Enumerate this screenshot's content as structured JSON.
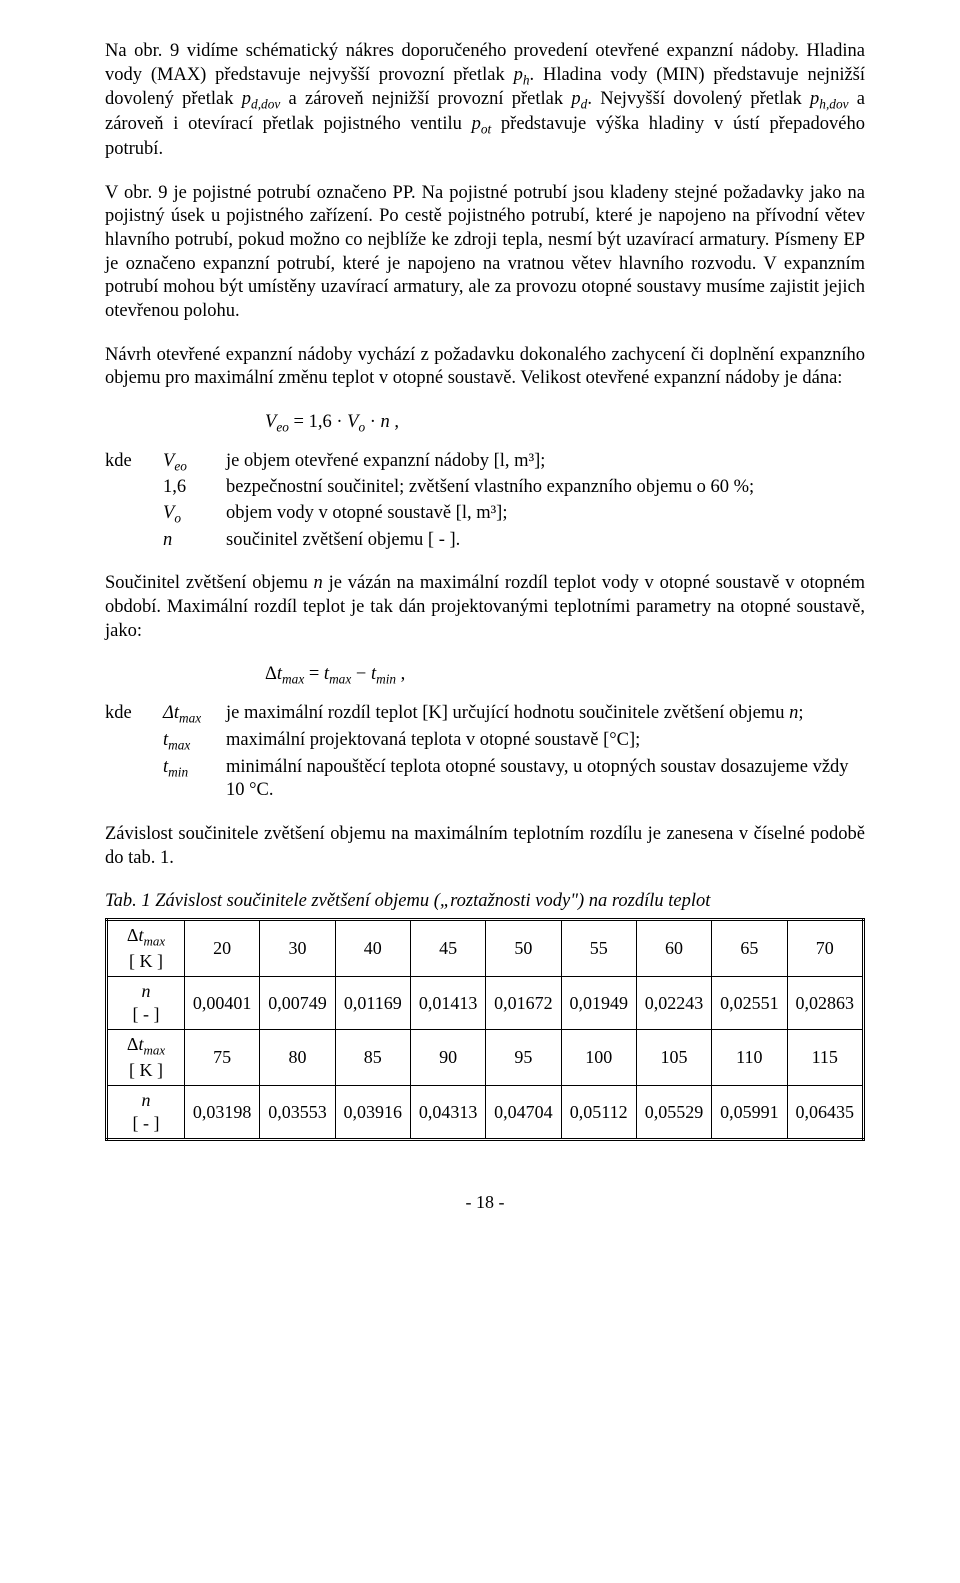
{
  "para1": "Na obr. 9 vidíme schématický nákres doporučeného provedení otevřené expanzní nádoby. Hladina vody (MAX) představuje nejvyšší provozní přetlak pₕ. Hladina vody (MIN) představuje nejnižší dovolený přetlak p_d,dov a zároveň nejnižší provozní přetlak p_d. Nejvyšší dovolený přetlak p_h,dov a zároveň i otevírací přetlak pojistného ventilu p_ot představuje výška hladiny v ústí přepadového potrubí.",
  "para2": "V obr. 9 je pojistné potrubí označeno PP. Na pojistné potrubí jsou kladeny stejné požadavky jako na pojistný úsek u pojistného zařízení. Po cestě pojistného potrubí, které je napojeno na přívodní větev hlavního potrubí, pokud možno co nejblíže ke zdroji tepla, nesmí být uzavírací armatury. Písmeny EP je označeno expanzní potrubí, které je napojeno na vratnou větev hlavního rozvodu. V expanzním potrubí mohou být umístěny uzavírací armatury, ale za provozu otopné soustavy musíme zajistit jejich otevřenou polohu.",
  "para3": "Návrh otevřené expanzní nádoby vychází z požadavku dokonalého zachycení či doplnění expanzního objemu pro maximální změnu teplot v otopné soustavě. Velikost otevřené expanzní nádoby je dána:",
  "formula1": "V_eo = 1,6 · V_o · n ,",
  "defs1": {
    "kde": "kde",
    "rows": [
      {
        "sym": "V_eo",
        "txt": "je objem otevřené expanzní nádoby [l, m³];"
      },
      {
        "sym": "1,6",
        "txt": "bezpečnostní součinitel; zvětšení vlastního expanzního objemu o 60 %;"
      },
      {
        "sym": "V_o",
        "txt": "objem vody v otopné soustavě [l, m³];"
      },
      {
        "sym": "n",
        "txt": "součinitel zvětšení objemu [ - ]."
      }
    ]
  },
  "para4": "Součinitel zvětšení objemu n je vázán na maximální rozdíl teplot vody v otopné soustavě v otopném období. Maximální rozdíl teplot je tak dán projektovanými teplotními parametry na otopné soustavě, jako:",
  "formula2": "Δt_max = t_max − t_min ,",
  "defs2": {
    "kde": "kde",
    "rows": [
      {
        "sym": "Δt_max",
        "txt": "je maximální rozdíl teplot [K] určující hodnotu součinitele zvětšení objemu n;"
      },
      {
        "sym": "t_max",
        "txt": "maximální projektovaná teplota v otopné soustavě [°C];"
      },
      {
        "sym": "t_min",
        "txt": "minimální napouštěcí teplota otopné soustavy, u otopných soustav dosazujeme vždy 10 °C."
      }
    ]
  },
  "para5": "Závislost součinitele zvětšení objemu na maximálním teplotním rozdílu je zanesena v číselné podobě do tab. 1.",
  "table": {
    "caption": "Tab. 1 Závislost součinitele zvětšení objemu („roztažnosti vody\") na rozdílu teplot",
    "rowhead_dt": "Δt_max\n[ K ]",
    "rowhead_n": "n\n[ - ]",
    "block1": {
      "dt": [
        "20",
        "30",
        "40",
        "45",
        "50",
        "55",
        "60",
        "65",
        "70"
      ],
      "n": [
        "0,00401",
        "0,00749",
        "0,01169",
        "0,01413",
        "0,01672",
        "0,01949",
        "0,02243",
        "0,02551",
        "0,02863"
      ]
    },
    "block2": {
      "dt": [
        "75",
        "80",
        "85",
        "90",
        "95",
        "100",
        "105",
        "110",
        "115"
      ],
      "n": [
        "0,03198",
        "0,03553",
        "0,03916",
        "0,04313",
        "0,04704",
        "0,05112",
        "0,05529",
        "0,05991",
        "0,06435"
      ]
    }
  },
  "page_number": "- 18 -",
  "colors": {
    "text": "#000000",
    "background": "#ffffff",
    "table_border": "#000000"
  },
  "fonts": {
    "body_family": "Times New Roman",
    "body_size_pt": 14,
    "caption_style": "italic"
  }
}
